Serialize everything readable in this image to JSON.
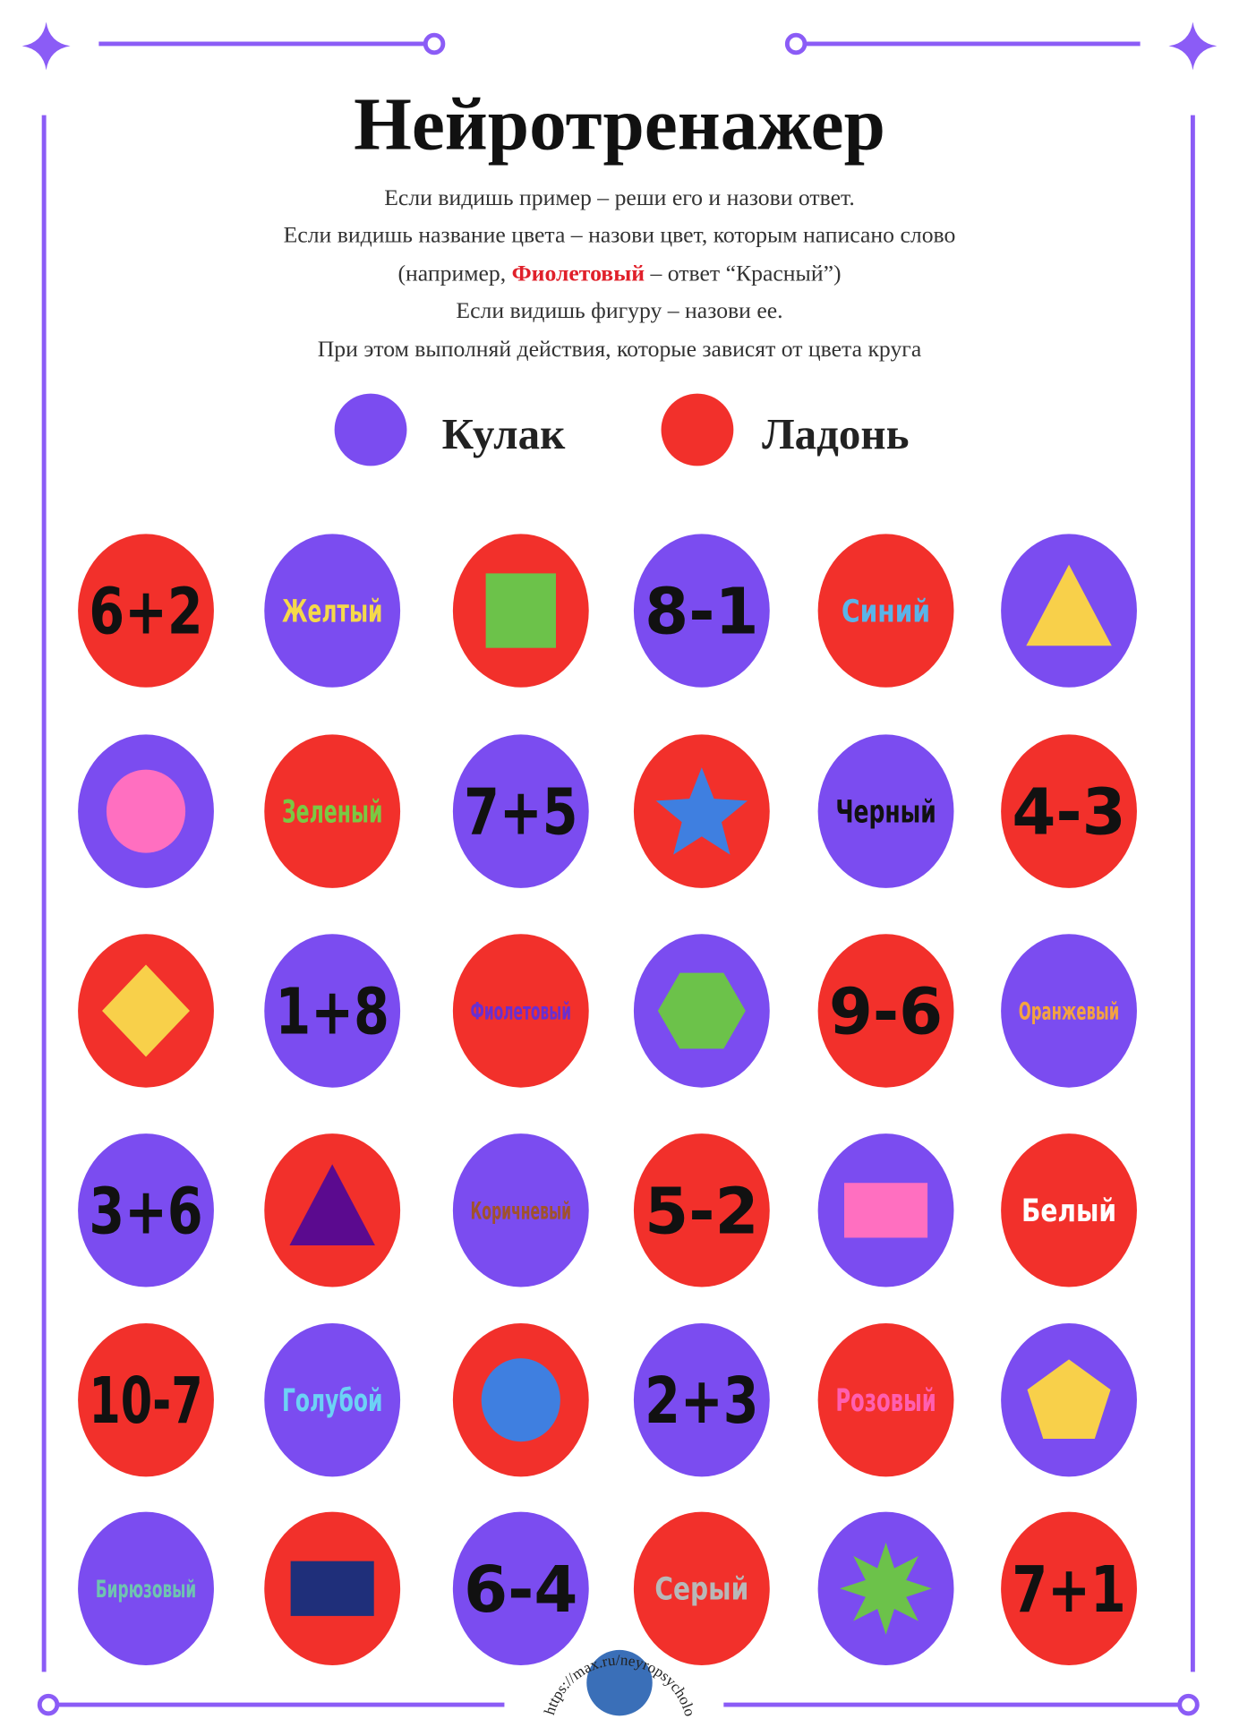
{
  "header": {
    "title": "Нейротренажер",
    "instructions": {
      "line1": "Если видишь пример – реши его и назови ответ.",
      "line2": "Если видишь название цвета – назови цвет, которым написано слово",
      "example_prefix": "(например, ",
      "example_word": "Фиолетовый",
      "example_word_color": "#e0202a",
      "example_suffix": " – ответ “Красный”)",
      "line4": "Если видишь фигуру – назови ее.",
      "line5": "При этом выполняй действия, которые зависят от цвета круга"
    }
  },
  "legend": [
    {
      "color": "#7b4cf0",
      "label": "Кулак"
    },
    {
      "color": "#f2302b",
      "label": "Ладонь"
    }
  ],
  "grid": [
    [
      {
        "bg": "#f2302b",
        "text": "6+2",
        "text_color": "#111111"
      },
      {
        "bg": "#7b4cf0",
        "text": "Желтый",
        "text_color": "#f5d94a"
      },
      {
        "bg": "#f2302b",
        "shape": "square",
        "shape_color": "#6cc24a"
      },
      {
        "bg": "#7b4cf0",
        "text": "8-1",
        "text_color": "#111111"
      },
      {
        "bg": "#f2302b",
        "text": "Синий",
        "text_color": "#5ab4e8"
      },
      {
        "bg": "#7b4cf0",
        "shape": "triangle",
        "shape_color": "#f8d04a"
      }
    ],
    [
      {
        "bg": "#7b4cf0",
        "shape": "circle",
        "shape_color": "#ff6fc0"
      },
      {
        "bg": "#f2302b",
        "text": "Зеленый",
        "text_color": "#7ac943"
      },
      {
        "bg": "#7b4cf0",
        "text": "7+5",
        "text_color": "#111111"
      },
      {
        "bg": "#f2302b",
        "shape": "star",
        "shape_color": "#3f7fe0"
      },
      {
        "bg": "#7b4cf0",
        "text": "Черный",
        "text_color": "#111111"
      },
      {
        "bg": "#f2302b",
        "text": "4-3",
        "text_color": "#111111"
      }
    ],
    [
      {
        "bg": "#f2302b",
        "shape": "diamond",
        "shape_color": "#f8d04a"
      },
      {
        "bg": "#7b4cf0",
        "text": "1+8",
        "text_color": "#111111"
      },
      {
        "bg": "#f2302b",
        "text": "Фиолетовый",
        "text_color": "#6a2fd0"
      },
      {
        "bg": "#7b4cf0",
        "shape": "hexagon",
        "shape_color": "#6cc24a"
      },
      {
        "bg": "#f2302b",
        "text": "9-6",
        "text_color": "#111111"
      },
      {
        "bg": "#7b4cf0",
        "text": "Оранжевый",
        "text_color": "#f4a340"
      }
    ],
    [
      {
        "bg": "#7b4cf0",
        "text": "3+6",
        "text_color": "#111111"
      },
      {
        "bg": "#f2302b",
        "shape": "triangle",
        "shape_color": "#5b0a8f"
      },
      {
        "bg": "#7b4cf0",
        "text": "Коричневый",
        "text_color": "#a0522d"
      },
      {
        "bg": "#f2302b",
        "text": "5-2",
        "text_color": "#111111"
      },
      {
        "bg": "#7b4cf0",
        "shape": "rectangle",
        "shape_color": "#ff6fc0"
      },
      {
        "bg": "#f2302b",
        "text": "Белый",
        "text_color": "#ffffff"
      }
    ],
    [
      {
        "bg": "#f2302b",
        "text": "10-7",
        "text_color": "#111111"
      },
      {
        "bg": "#7b4cf0",
        "text": "Голубой",
        "text_color": "#6cd2f5"
      },
      {
        "bg": "#f2302b",
        "shape": "circle",
        "shape_color": "#3f7fe0"
      },
      {
        "bg": "#7b4cf0",
        "text": "2+3",
        "text_color": "#111111"
      },
      {
        "bg": "#f2302b",
        "text": "Розовый",
        "text_color": "#ff5fb0"
      },
      {
        "bg": "#7b4cf0",
        "shape": "pentagon",
        "shape_color": "#f8d04a"
      }
    ],
    [
      {
        "bg": "#7b4cf0",
        "text": "Бирюзовый",
        "text_color": "#6fc4b0"
      },
      {
        "bg": "#f2302b",
        "shape": "rectangle",
        "shape_color": "#1f2f7a"
      },
      {
        "bg": "#7b4cf0",
        "text": "6-4",
        "text_color": "#111111"
      },
      {
        "bg": "#f2302b",
        "text": "Серый",
        "text_color": "#b8b8b8"
      },
      {
        "bg": "#7b4cf0",
        "shape": "star8",
        "shape_color": "#6cc24a"
      },
      {
        "bg": "#f2302b",
        "text": "7+1",
        "text_color": "#111111"
      }
    ]
  ],
  "watermark": "https://max.ru/neyropsychology"
}
